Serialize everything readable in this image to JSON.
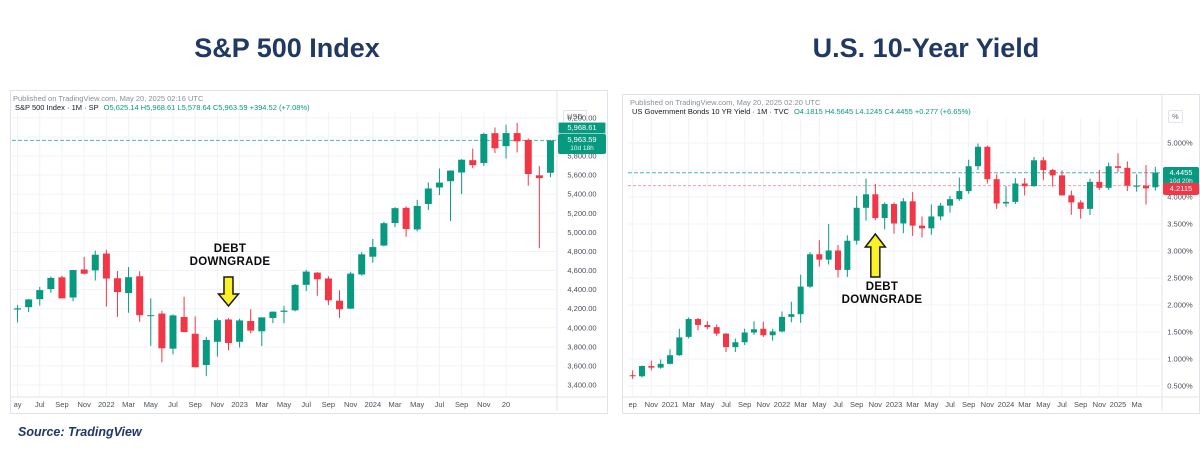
{
  "page": {
    "source_label": "Source: TradingView"
  },
  "titles": {
    "left": "S&P 500 Index",
    "right": "U.S. 10-Year Yield"
  },
  "colors": {
    "up": "#089981",
    "down": "#f23645",
    "navy": "#1f3864",
    "arrow_yellow": "#fbf127",
    "grid": "#f0f3fa",
    "axis_line": "#e0e3eb",
    "tick_text": "#4a4f5a"
  },
  "left_chart": {
    "published": "Published on TradingView.com, May 20, 2025 02:16 UTC",
    "legend": {
      "symbol": "S&P 500 Index · 1M · SP",
      "values": "O5,625.14 H5,968.61 L5,578.64 C5,963.59 +394.52 (+7.08%)"
    },
    "y_axis": {
      "unit": "USD",
      "ticks": [
        {
          "v": 6200,
          "label": "6,200.00"
        },
        {
          "v": 6000,
          "label": "6,000.00"
        },
        {
          "v": 5800,
          "label": "5,800.00"
        },
        {
          "v": 5600,
          "label": "5,600.00"
        },
        {
          "v": 5400,
          "label": "5,400.00"
        },
        {
          "v": 5200,
          "label": "5,200.00"
        },
        {
          "v": 5000,
          "label": "5,000.00"
        },
        {
          "v": 4800,
          "label": "4,800.00"
        },
        {
          "v": 4600,
          "label": "4,600.00"
        },
        {
          "v": 4400,
          "label": "4,400.00"
        },
        {
          "v": 4200,
          "label": "4,200.00"
        },
        {
          "v": 4000,
          "label": "4,000.00"
        },
        {
          "v": 3800,
          "label": "3,800.00"
        },
        {
          "v": 3600,
          "label": "3,600.00"
        },
        {
          "v": 3400,
          "label": "3,400.00"
        }
      ]
    },
    "x_ticks": [
      {
        "i": 0,
        "label": "ay"
      },
      {
        "i": 2,
        "label": "Jul"
      },
      {
        "i": 4,
        "label": "Sep"
      },
      {
        "i": 6,
        "label": "Nov"
      },
      {
        "i": 8,
        "label": "2022"
      },
      {
        "i": 10,
        "label": "Mar"
      },
      {
        "i": 12,
        "label": "May"
      },
      {
        "i": 14,
        "label": "Jul"
      },
      {
        "i": 16,
        "label": "Sep"
      },
      {
        "i": 18,
        "label": "Nov"
      },
      {
        "i": 20,
        "label": "2023"
      },
      {
        "i": 22,
        "label": "Mar"
      },
      {
        "i": 24,
        "label": "May"
      },
      {
        "i": 26,
        "label": "Jul"
      },
      {
        "i": 28,
        "label": "Sep"
      },
      {
        "i": 30,
        "label": "Nov"
      },
      {
        "i": 32,
        "label": "2024"
      },
      {
        "i": 34,
        "label": "Mar"
      },
      {
        "i": 36,
        "label": "May"
      },
      {
        "i": 38,
        "label": "Jul"
      },
      {
        "i": 40,
        "label": "Sep"
      },
      {
        "i": 42,
        "label": "Nov"
      },
      {
        "i": 44,
        "label": "20"
      }
    ],
    "badges": {
      "high": "5,968.61",
      "last_price": "5,963.59",
      "countdown": "10d 18h"
    },
    "annotation": {
      "line1": "DEBT",
      "line2": "DOWNGRADE",
      "index": 19,
      "dir": "down"
    }
  },
  "right_chart": {
    "published": "Published on TradingView.com, May 20, 2025 02:20 UTC",
    "legend": {
      "symbol": "US Government Bonds 10 YR Yield · 1M · TVC",
      "values": "O4.1815 H4.5645 L4.1245 C4.4455 +0.277 (+6.65%)"
    },
    "y_axis": {
      "unit": "%",
      "ticks": [
        {
          "v": 5.0,
          "label": "5.000%"
        },
        {
          "v": 4.5,
          "label": "4.500%"
        },
        {
          "v": 4.0,
          "label": "4.000%"
        },
        {
          "v": 3.5,
          "label": "3.500%"
        },
        {
          "v": 3.0,
          "label": "3.000%"
        },
        {
          "v": 2.5,
          "label": "2.500%"
        },
        {
          "v": 2.0,
          "label": "2.000%"
        },
        {
          "v": 1.5,
          "label": "1.500%"
        },
        {
          "v": 1.0,
          "label": "1.000%"
        },
        {
          "v": 0.5,
          "label": "0.500%"
        }
      ]
    },
    "x_ticks": [
      {
        "i": 0,
        "label": "ep"
      },
      {
        "i": 2,
        "label": "Nov"
      },
      {
        "i": 4,
        "label": "2021"
      },
      {
        "i": 6,
        "label": "Mar"
      },
      {
        "i": 8,
        "label": "May"
      },
      {
        "i": 10,
        "label": "Jul"
      },
      {
        "i": 12,
        "label": "Sep"
      },
      {
        "i": 14,
        "label": "Nov"
      },
      {
        "i": 16,
        "label": "2022"
      },
      {
        "i": 18,
        "label": "Mar"
      },
      {
        "i": 20,
        "label": "May"
      },
      {
        "i": 22,
        "label": "Jul"
      },
      {
        "i": 24,
        "label": "Sep"
      },
      {
        "i": 26,
        "label": "Nov"
      },
      {
        "i": 28,
        "label": "2023"
      },
      {
        "i": 30,
        "label": "Mar"
      },
      {
        "i": 32,
        "label": "May"
      },
      {
        "i": 34,
        "label": "Jul"
      },
      {
        "i": 36,
        "label": "Sep"
      },
      {
        "i": 38,
        "label": "Nov"
      },
      {
        "i": 40,
        "label": "2024"
      },
      {
        "i": 42,
        "label": "Mar"
      },
      {
        "i": 44,
        "label": "May"
      },
      {
        "i": 46,
        "label": "Jul"
      },
      {
        "i": 48,
        "label": "Sep"
      },
      {
        "i": 50,
        "label": "Nov"
      },
      {
        "i": 52,
        "label": "2025"
      },
      {
        "i": 54,
        "label": "Ma"
      }
    ],
    "badges": {
      "last_price": "4.4455",
      "countdown": "10d 20h",
      "prev": "4.2115"
    },
    "annotation": {
      "line1": "DEBT",
      "line2": "DOWNGRADE",
      "index": 26,
      "dir": "up"
    }
  },
  "chart_data": [
    {
      "type": "candlestick",
      "title": "S&P 500 Index",
      "symbol": "SP",
      "timeframe": "1M",
      "unit": "USD",
      "ylim": [
        3300,
        6300
      ],
      "x": [
        "2021-05",
        "2021-06",
        "2021-07",
        "2021-08",
        "2021-09",
        "2021-10",
        "2021-11",
        "2021-12",
        "2022-01",
        "2022-02",
        "2022-03",
        "2022-04",
        "2022-05",
        "2022-06",
        "2022-07",
        "2022-08",
        "2022-09",
        "2022-10",
        "2022-11",
        "2022-12",
        "2023-01",
        "2023-02",
        "2023-03",
        "2023-04",
        "2023-05",
        "2023-06",
        "2023-07",
        "2023-08",
        "2023-09",
        "2023-10",
        "2023-11",
        "2023-12",
        "2024-01",
        "2024-02",
        "2024-03",
        "2024-04",
        "2024-05",
        "2024-06",
        "2024-07",
        "2024-08",
        "2024-09",
        "2024-10",
        "2024-11",
        "2024-12",
        "2025-01",
        "2025-02",
        "2025-03",
        "2025-04",
        "2025-05"
      ],
      "ohlc": [
        [
          4191,
          4238,
          4057,
          4204
        ],
        [
          4216,
          4302,
          4164,
          4297
        ],
        [
          4300,
          4429,
          4233,
          4395
        ],
        [
          4406,
          4537,
          4367,
          4523
        ],
        [
          4529,
          4546,
          4306,
          4308
        ],
        [
          4317,
          4608,
          4278,
          4605
        ],
        [
          4611,
          4744,
          4560,
          4567
        ],
        [
          4602,
          4808,
          4495,
          4766
        ],
        [
          4778,
          4818,
          4222,
          4516
        ],
        [
          4519,
          4595,
          4115,
          4374
        ],
        [
          4364,
          4637,
          4158,
          4530
        ],
        [
          4540,
          4593,
          4063,
          4132
        ],
        [
          4131,
          4308,
          3811,
          4132
        ],
        [
          4149,
          4178,
          3637,
          3785
        ],
        [
          3781,
          4140,
          3721,
          4130
        ],
        [
          4113,
          4325,
          3954,
          3955
        ],
        [
          3937,
          4119,
          3584,
          3586
        ],
        [
          3610,
          3905,
          3492,
          3872
        ],
        [
          3853,
          4100,
          3698,
          4080
        ],
        [
          4087,
          4101,
          3764,
          3840
        ],
        [
          3853,
          4094,
          3794,
          4077
        ],
        [
          4071,
          4195,
          3943,
          3970
        ],
        [
          3963,
          4110,
          3809,
          4109
        ],
        [
          4103,
          4170,
          4049,
          4169
        ],
        [
          4167,
          4231,
          4048,
          4180
        ],
        [
          4183,
          4458,
          4172,
          4450
        ],
        [
          4450,
          4607,
          4385,
          4589
        ],
        [
          4578,
          4584,
          4335,
          4508
        ],
        [
          4517,
          4541,
          4238,
          4288
        ],
        [
          4284,
          4393,
          4104,
          4194
        ],
        [
          4201,
          4587,
          4197,
          4568
        ],
        [
          4559,
          4793,
          4546,
          4770
        ],
        [
          4745,
          4931,
          4682,
          4846
        ],
        [
          4862,
          5111,
          4853,
          5096
        ],
        [
          5098,
          5264,
          5056,
          5254
        ],
        [
          5257,
          5274,
          4954,
          5036
        ],
        [
          5031,
          5341,
          5011,
          5277
        ],
        [
          5298,
          5523,
          5234,
          5460
        ],
        [
          5471,
          5670,
          5391,
          5522
        ],
        [
          5537,
          5651,
          5119,
          5648
        ],
        [
          5628,
          5767,
          5402,
          5762
        ],
        [
          5757,
          5878,
          5674,
          5705
        ],
        [
          5728,
          6044,
          5697,
          6032
        ],
        [
          6040,
          6100,
          5832,
          5882
        ],
        [
          5904,
          6128,
          5773,
          6041
        ],
        [
          6041,
          6147,
          5838,
          5955
        ],
        [
          5969,
          5986,
          5489,
          5612
        ],
        [
          5598,
          5695,
          4835,
          5569
        ],
        [
          5625,
          5969,
          5579,
          5964
        ]
      ],
      "last_bar": {
        "o": "5,625.14",
        "h": "5,968.61",
        "l": "5,578.64",
        "c": "5,963.59",
        "change": "+394.52 (+7.08%)"
      },
      "annotation": {
        "text": "DEBT DOWNGRADE",
        "points_at": "2022-12"
      }
    },
    {
      "type": "candlestick",
      "title": "U.S. 10-Year Yield",
      "symbol": "TVC",
      "timeframe": "1M",
      "unit": "%",
      "ylim": [
        0.3,
        5.7
      ],
      "x": [
        "2020-09",
        "2020-10",
        "2020-11",
        "2020-12",
        "2021-01",
        "2021-02",
        "2021-03",
        "2021-04",
        "2021-05",
        "2021-06",
        "2021-07",
        "2021-08",
        "2021-09",
        "2021-10",
        "2021-11",
        "2021-12",
        "2022-01",
        "2022-02",
        "2022-03",
        "2022-04",
        "2022-05",
        "2022-06",
        "2022-07",
        "2022-08",
        "2022-09",
        "2022-10",
        "2022-11",
        "2022-12",
        "2023-01",
        "2023-02",
        "2023-03",
        "2023-04",
        "2023-05",
        "2023-06",
        "2023-07",
        "2023-08",
        "2023-09",
        "2023-10",
        "2023-11",
        "2023-12",
        "2024-01",
        "2024-02",
        "2024-03",
        "2024-04",
        "2024-05",
        "2024-06",
        "2024-07",
        "2024-08",
        "2024-09",
        "2024-10",
        "2024-11",
        "2024-12",
        "2025-01",
        "2025-02",
        "2025-03",
        "2025-04",
        "2025-05"
      ],
      "ohlc": [
        [
          0.7,
          0.79,
          0.63,
          0.68
        ],
        [
          0.68,
          0.88,
          0.66,
          0.87
        ],
        [
          0.87,
          0.97,
          0.79,
          0.84
        ],
        [
          0.84,
          0.99,
          0.82,
          0.91
        ],
        [
          0.91,
          1.18,
          0.9,
          1.07
        ],
        [
          1.07,
          1.56,
          1.06,
          1.4
        ],
        [
          1.41,
          1.77,
          1.38,
          1.74
        ],
        [
          1.74,
          1.76,
          1.53,
          1.63
        ],
        [
          1.63,
          1.7,
          1.55,
          1.59
        ],
        [
          1.59,
          1.64,
          1.43,
          1.47
        ],
        [
          1.47,
          1.48,
          1.13,
          1.22
        ],
        [
          1.22,
          1.38,
          1.13,
          1.31
        ],
        [
          1.31,
          1.56,
          1.26,
          1.49
        ],
        [
          1.49,
          1.7,
          1.45,
          1.55
        ],
        [
          1.56,
          1.69,
          1.41,
          1.44
        ],
        [
          1.44,
          1.56,
          1.34,
          1.51
        ],
        [
          1.51,
          1.88,
          1.49,
          1.78
        ],
        [
          1.78,
          2.06,
          1.68,
          1.83
        ],
        [
          1.83,
          2.56,
          1.67,
          2.34
        ],
        [
          2.34,
          2.98,
          2.32,
          2.94
        ],
        [
          2.94,
          3.2,
          2.71,
          2.84
        ],
        [
          2.84,
          3.5,
          2.75,
          3.01
        ],
        [
          3.01,
          3.11,
          2.51,
          2.65
        ],
        [
          2.65,
          3.29,
          2.52,
          3.19
        ],
        [
          3.19,
          4.02,
          3.12,
          3.8
        ],
        [
          3.8,
          4.34,
          3.56,
          4.05
        ],
        [
          4.05,
          4.24,
          3.57,
          3.61
        ],
        [
          3.61,
          3.9,
          3.4,
          3.87
        ],
        [
          3.87,
          3.9,
          3.32,
          3.51
        ],
        [
          3.51,
          3.98,
          3.33,
          3.92
        ],
        [
          3.92,
          4.09,
          3.28,
          3.47
        ],
        [
          3.47,
          3.64,
          3.25,
          3.42
        ],
        [
          3.42,
          3.86,
          3.3,
          3.64
        ],
        [
          3.64,
          3.89,
          3.57,
          3.84
        ],
        [
          3.84,
          4.02,
          3.71,
          3.96
        ],
        [
          3.96,
          4.36,
          3.93,
          4.11
        ],
        [
          4.11,
          4.69,
          4.06,
          4.57
        ],
        [
          4.57,
          4.99,
          4.5,
          4.93
        ],
        [
          4.93,
          4.95,
          4.25,
          4.33
        ],
        [
          4.33,
          4.42,
          3.78,
          3.88
        ],
        [
          3.88,
          4.2,
          3.82,
          3.91
        ],
        [
          3.91,
          4.35,
          3.87,
          4.25
        ],
        [
          4.25,
          4.35,
          4.03,
          4.2
        ],
        [
          4.2,
          4.74,
          4.19,
          4.68
        ],
        [
          4.68,
          4.74,
          4.31,
          4.5
        ],
        [
          4.5,
          4.52,
          4.19,
          4.4
        ],
        [
          4.4,
          4.49,
          4.03,
          4.03
        ],
        [
          4.03,
          4.12,
          3.67,
          3.9
        ],
        [
          3.9,
          3.94,
          3.6,
          3.78
        ],
        [
          3.78,
          4.34,
          3.67,
          4.28
        ],
        [
          4.28,
          4.5,
          4.13,
          4.17
        ],
        [
          4.17,
          4.64,
          4.13,
          4.57
        ],
        [
          4.57,
          4.81,
          4.46,
          4.54
        ],
        [
          4.54,
          4.66,
          4.11,
          4.21
        ],
        [
          4.21,
          4.42,
          4.1,
          4.21
        ],
        [
          4.21,
          4.59,
          3.86,
          4.16
        ],
        [
          4.18,
          4.56,
          4.12,
          4.45
        ]
      ],
      "last_bar": {
        "o": "4.1815",
        "h": "4.5645",
        "l": "4.1245",
        "c": "4.4455",
        "change": "+0.277 (+6.65%)"
      },
      "prev_close_line": 4.2115,
      "annotation": {
        "text": "DEBT DOWNGRADE",
        "points_at": "2022-11"
      }
    }
  ]
}
